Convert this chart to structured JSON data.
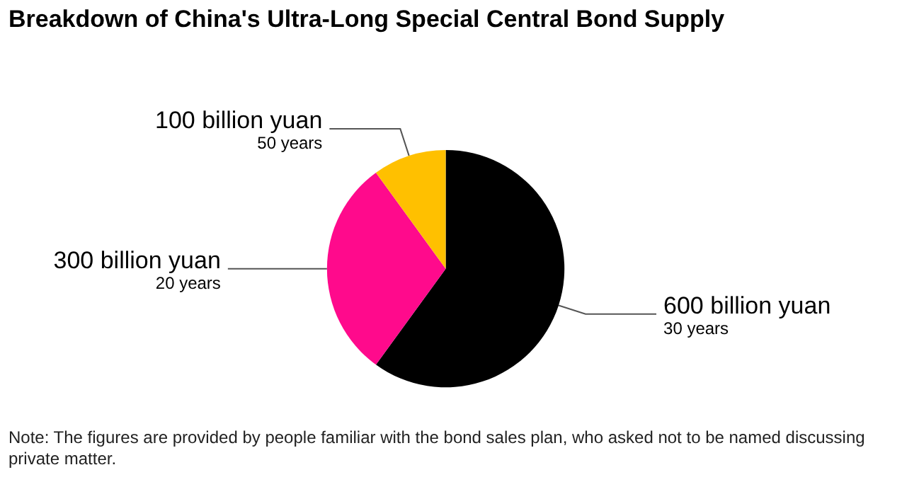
{
  "chart_data": {
    "type": "pie",
    "title": "Breakdown of China's Ultra-Long Special Central Bond Supply",
    "categories": [
      "30 years",
      "20 years",
      "50 years"
    ],
    "values": [
      600,
      300,
      100
    ],
    "value_labels": [
      "600 billion yuan",
      "300 billion yuan",
      "100 billion yuan"
    ],
    "colors": [
      "#000000",
      "#ff0a8c",
      "#ffc000"
    ],
    "annotations": [
      "Note: The figures are provided by people familiar with the bond sales plan, who asked not to be named discussing private matter."
    ]
  }
}
